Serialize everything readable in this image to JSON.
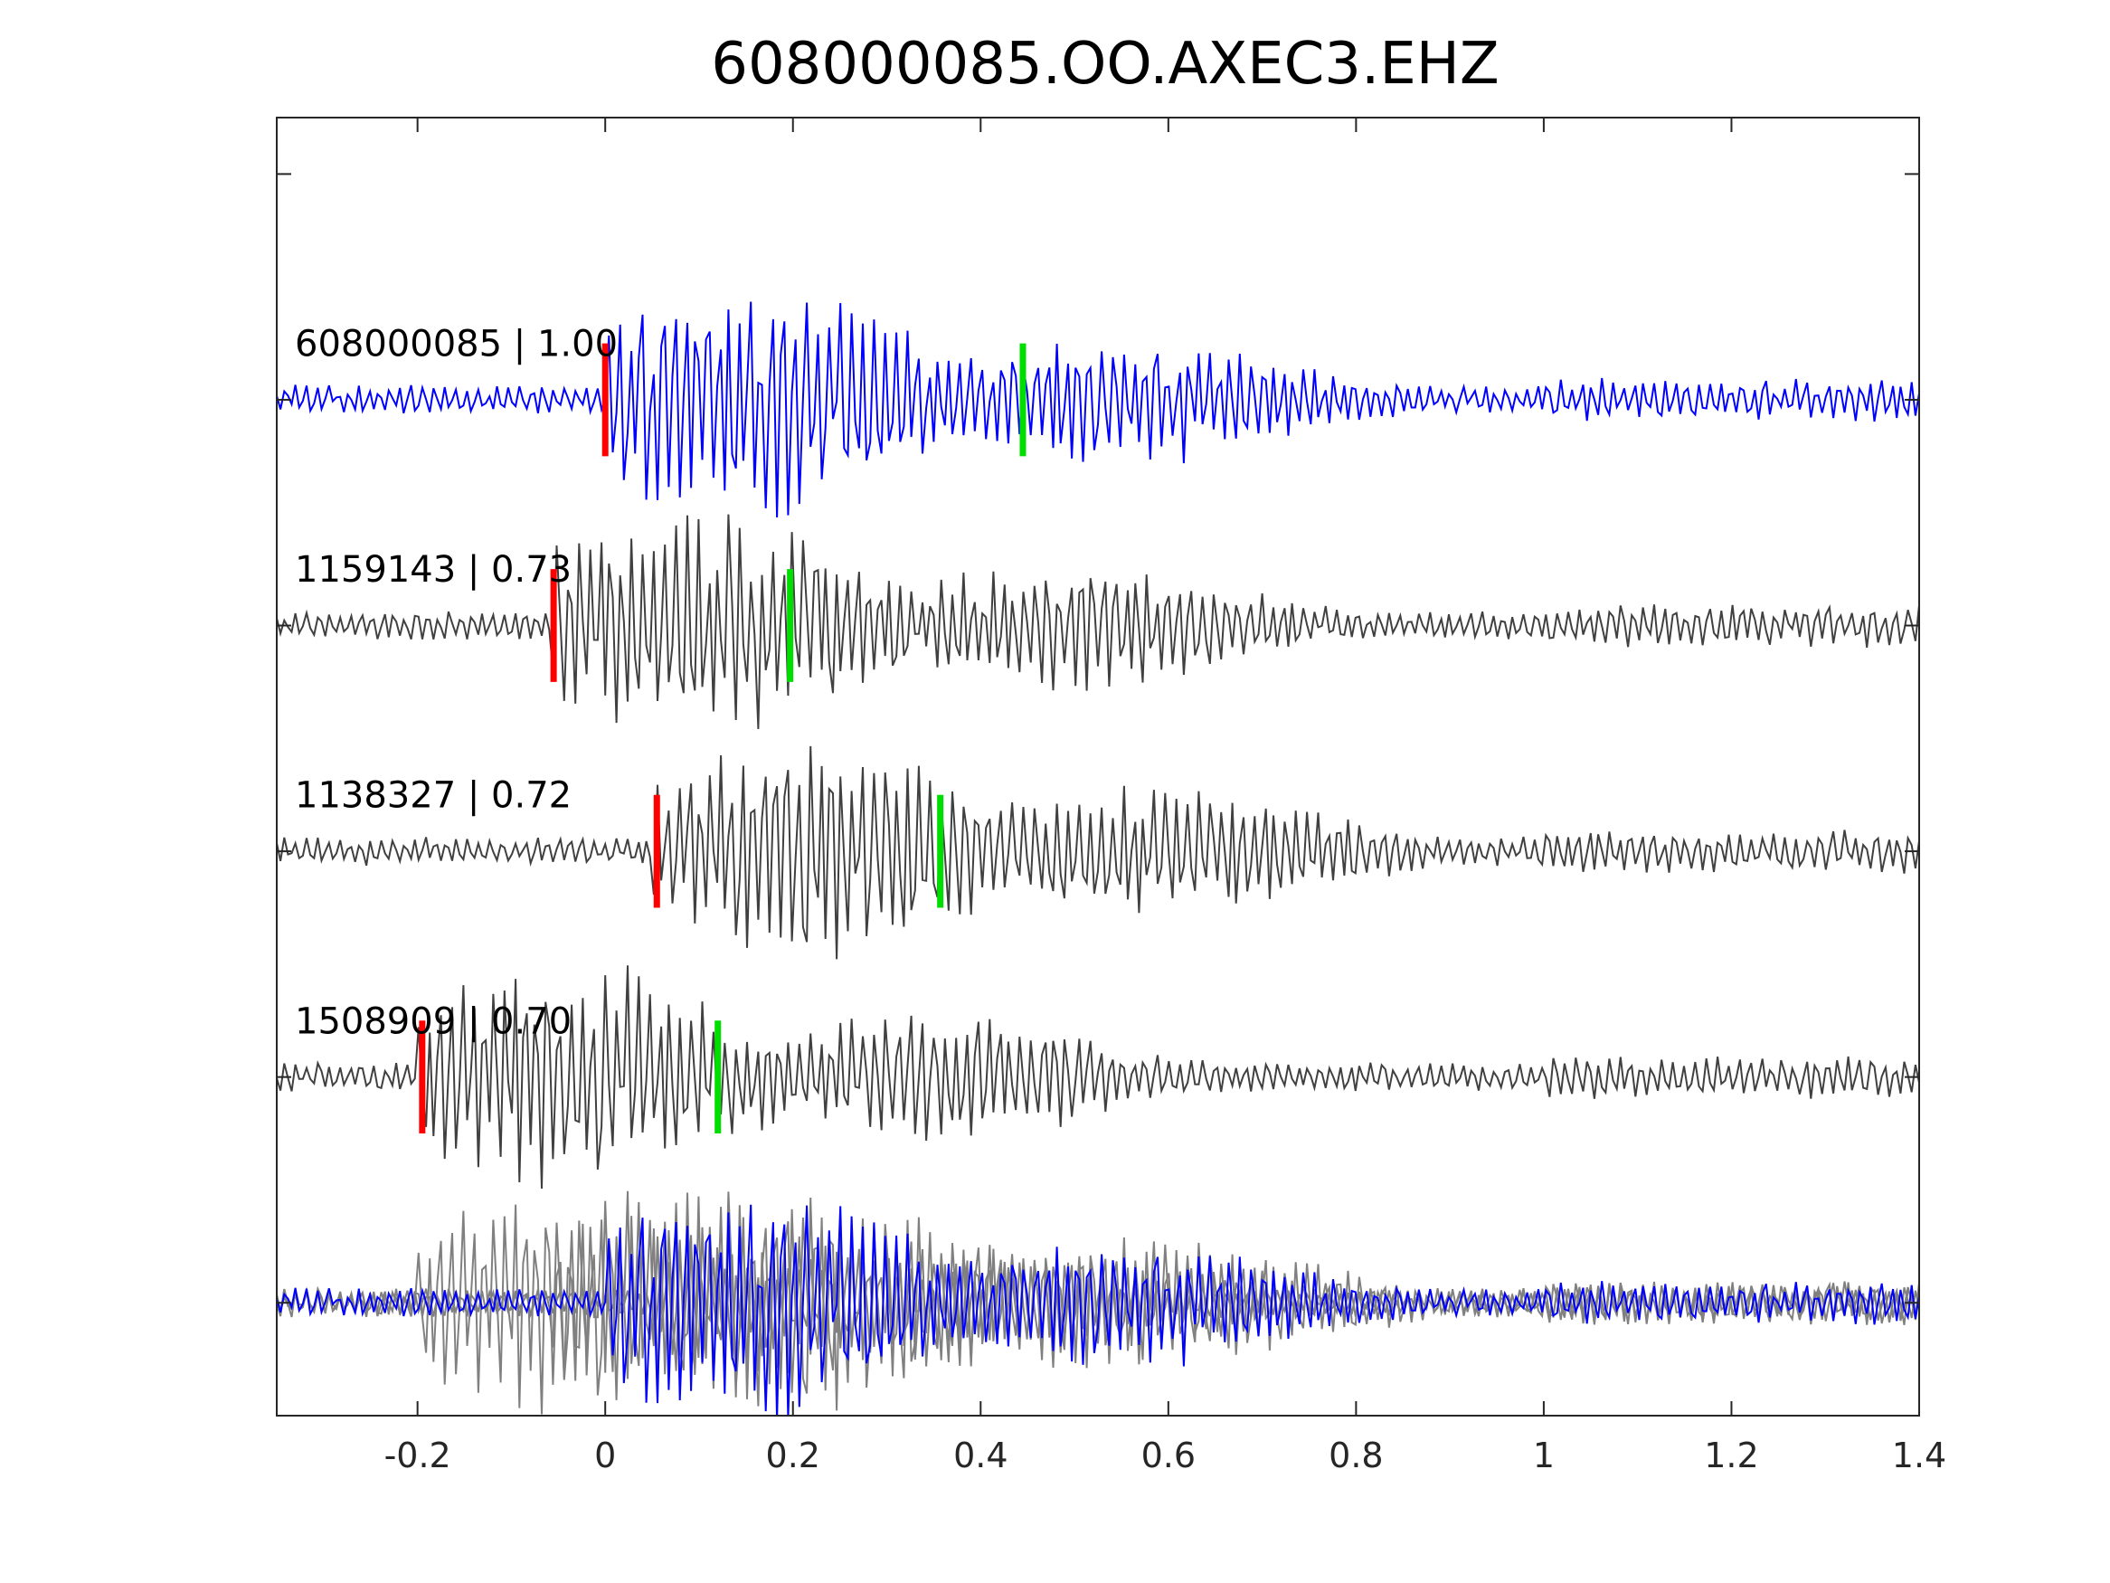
{
  "chart_data": {
    "type": "line",
    "title": "608000085.OO.AXEC3.EHZ",
    "xlabel": "",
    "ylabel": "",
    "xlim": [
      -0.35,
      1.4
    ],
    "xticks": [
      -0.2,
      0,
      0.2,
      0.4,
      0.6,
      0.8,
      1,
      1.2,
      1.4
    ],
    "xtick_labels": [
      "-0.2",
      "0",
      "0.2",
      "0.4",
      "0.6",
      "0.8",
      "1",
      "1.2",
      "1.4"
    ],
    "ylim": [
      0.5,
      6.25
    ],
    "yticks": [
      1,
      2,
      3,
      4,
      5,
      6
    ],
    "grid": false,
    "colors": {
      "template": "#0000ff",
      "match": "#404040",
      "overlay_match": "#808080",
      "p_pick": "#ff0000",
      "s_pick": "#00dd00",
      "axes": "#262626"
    },
    "traces": [
      {
        "label": "608000085 | 1.00",
        "offset": 5,
        "color": "template",
        "p_pick": 0.0,
        "s_pick": 0.445,
        "seed": 11,
        "amplitude": 0.5,
        "onset": 0.0
      },
      {
        "label": "1159143 | 0.73",
        "offset": 4,
        "color": "match",
        "p_pick": -0.055,
        "s_pick": 0.197,
        "seed": 23,
        "amplitude": 0.5,
        "onset": -0.06
      },
      {
        "label": "1138327 | 0.72",
        "offset": 3,
        "color": "match",
        "p_pick": 0.055,
        "s_pick": 0.357,
        "seed": 37,
        "amplitude": 0.5,
        "onset": 0.05
      },
      {
        "label": "1508909 | 0.70",
        "offset": 2,
        "color": "match",
        "p_pick": -0.195,
        "s_pick": 0.12,
        "seed": 53,
        "amplitude": 0.5,
        "onset": -0.2
      }
    ],
    "overlay": {
      "offset": 1,
      "description_keys": [
        "template",
        "matches"
      ]
    },
    "pick_half_height": 0.25
  }
}
